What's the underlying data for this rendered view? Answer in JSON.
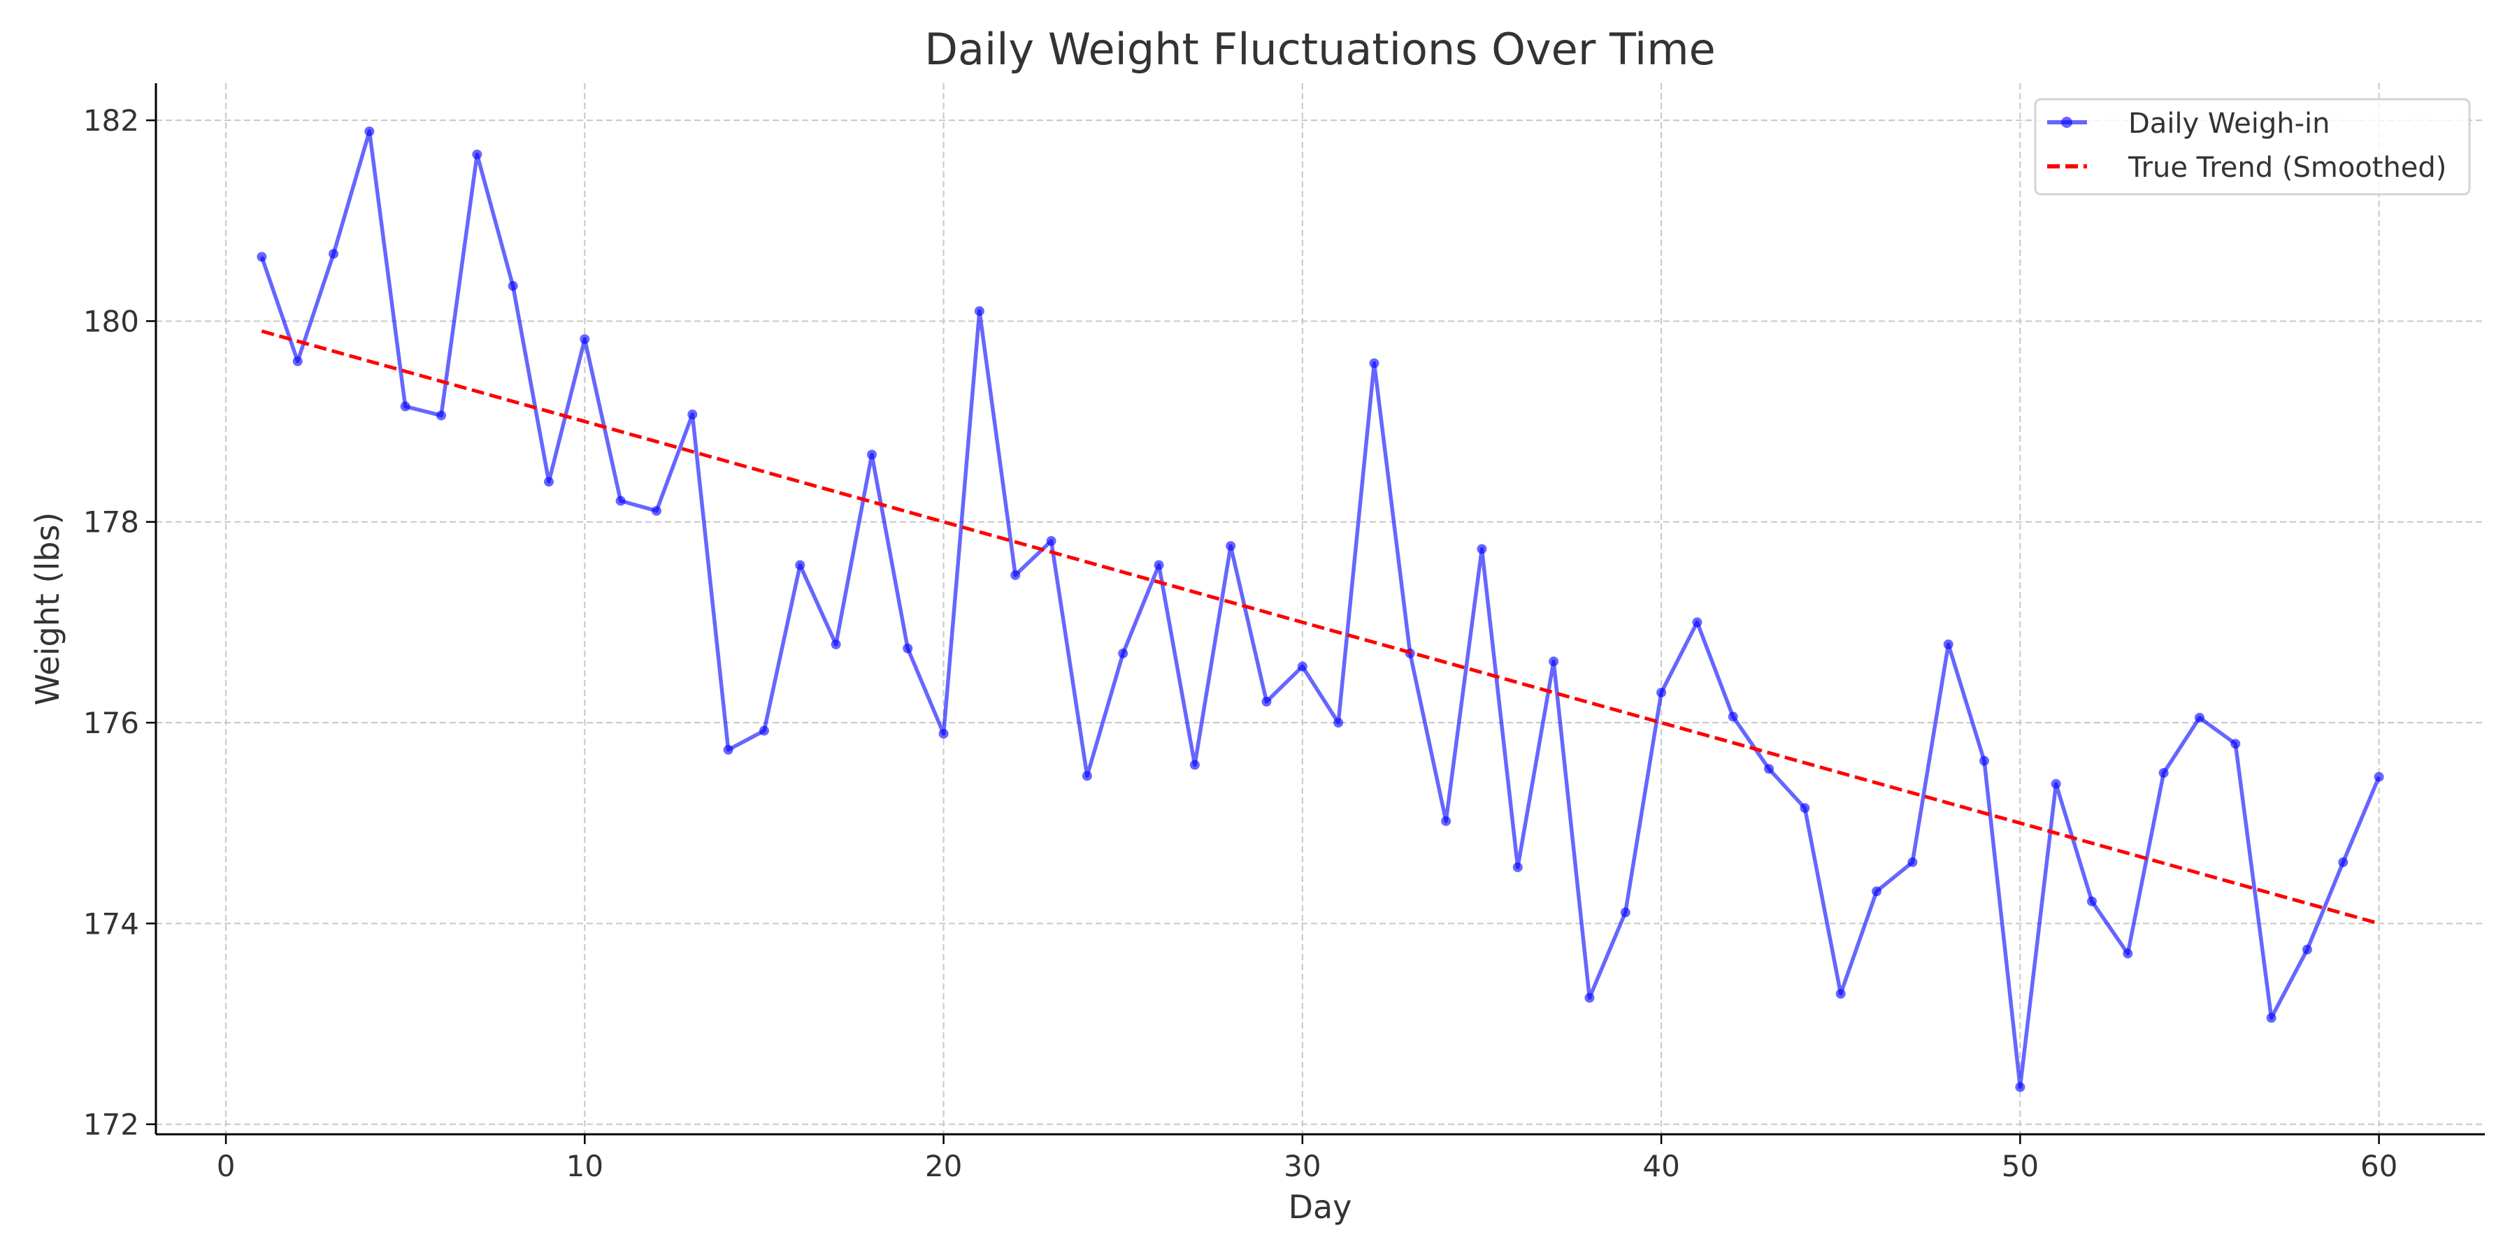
{
  "chart_data": {
    "type": "line",
    "title": "Daily Weight Fluctuations Over Time",
    "xlabel": "Day",
    "ylabel": "Weight (lbs)",
    "xlim": [
      -1.95,
      62.95
    ],
    "ylim": [
      171.9,
      182.37
    ],
    "xticks": [
      0,
      10,
      20,
      30,
      40,
      50,
      60
    ],
    "yticks": [
      172,
      174,
      176,
      178,
      180,
      182
    ],
    "grid": true,
    "legend_position": "top-right",
    "series": [
      {
        "name": "Daily Weigh-in",
        "color": "#0000ff",
        "style": "solid-with-markers",
        "x": [
          1,
          2,
          3,
          4,
          5,
          6,
          7,
          8,
          9,
          10,
          11,
          12,
          13,
          14,
          15,
          16,
          17,
          18,
          19,
          20,
          21,
          22,
          23,
          24,
          25,
          26,
          27,
          28,
          29,
          30,
          31,
          32,
          33,
          34,
          35,
          36,
          37,
          38,
          39,
          40,
          41,
          42,
          43,
          44,
          45,
          46,
          47,
          48,
          49,
          50,
          51,
          52,
          53,
          54,
          55,
          56,
          57,
          58,
          59,
          60
        ],
        "y": [
          180.64,
          179.6,
          180.67,
          181.89,
          179.15,
          179.06,
          181.66,
          180.35,
          178.4,
          179.82,
          178.21,
          178.11,
          179.07,
          175.73,
          175.92,
          177.57,
          176.78,
          178.67,
          176.74,
          175.89,
          180.1,
          177.47,
          177.81,
          175.47,
          176.69,
          177.57,
          175.58,
          177.76,
          176.21,
          176.56,
          176.0,
          179.58,
          176.69,
          175.02,
          177.73,
          174.56,
          176.61,
          173.26,
          174.11,
          176.3,
          177.0,
          176.06,
          175.54,
          175.15,
          173.3,
          174.32,
          174.61,
          176.78,
          175.62,
          172.37,
          175.39,
          174.22,
          173.7,
          175.5,
          176.05,
          175.79,
          173.06,
          173.74,
          174.61,
          175.46
        ]
      },
      {
        "name": "True Trend (Smoothed)",
        "color": "#ff0000",
        "style": "dashed",
        "x": [
          1,
          60
        ],
        "y": [
          179.9,
          174.0
        ]
      }
    ]
  }
}
